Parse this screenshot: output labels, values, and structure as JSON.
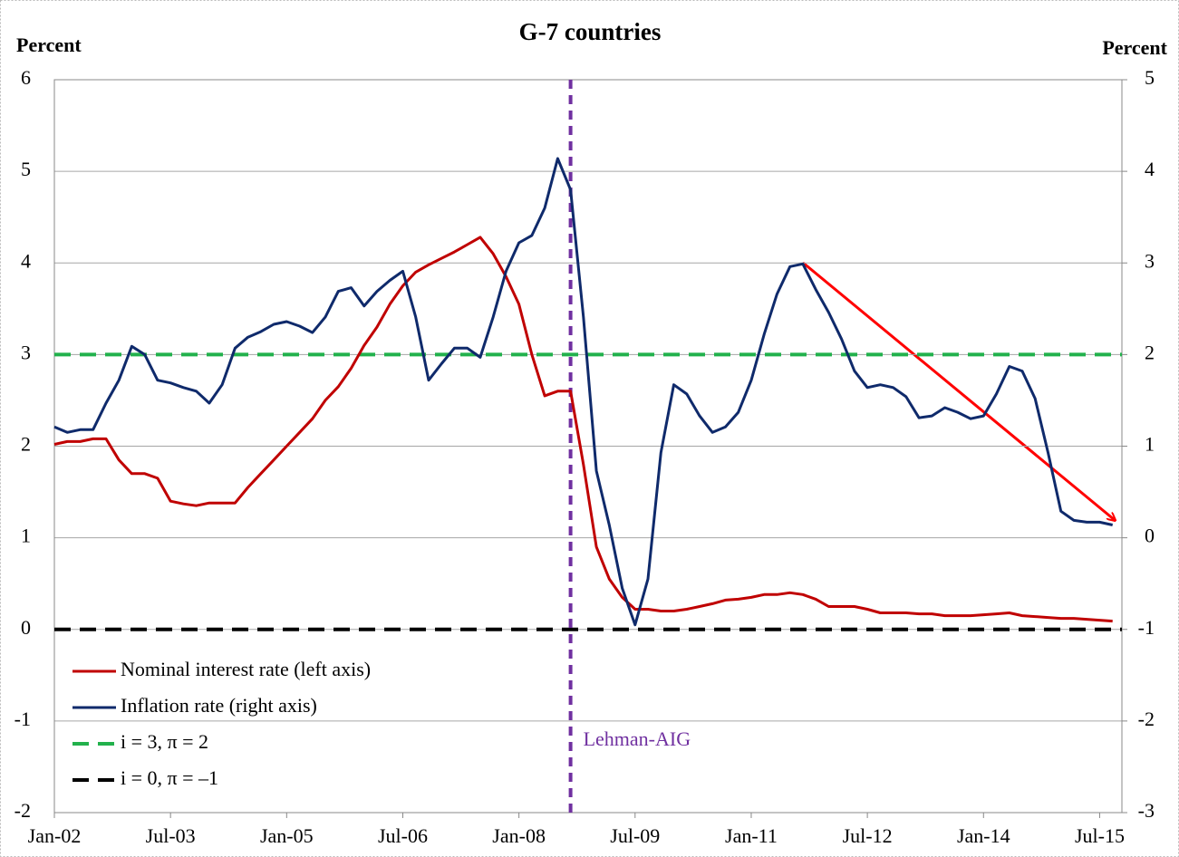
{
  "chart_data": {
    "type": "line",
    "title": "G-7 countries",
    "ylabel": "Percent",
    "y2label": "Percent",
    "categories": [
      "Jan-02",
      null,
      null,
      null,
      null,
      null,
      null,
      null,
      null,
      "Jul-03",
      null,
      null,
      null,
      null,
      null,
      null,
      null,
      null,
      "Jan-05",
      null,
      null,
      null,
      null,
      null,
      null,
      null,
      null,
      "Jul-06",
      null,
      null,
      null,
      null,
      null,
      null,
      null,
      null,
      "Jan-08",
      null,
      null,
      null,
      null,
      null,
      null,
      null,
      null,
      "Jul-09",
      null,
      null,
      null,
      null,
      null,
      null,
      null,
      null,
      "Jan-11",
      null,
      null,
      null,
      null,
      null,
      null,
      null,
      null,
      "Jul-12",
      null,
      null,
      null,
      null,
      null,
      null,
      null,
      null,
      "Jan-14",
      null,
      null,
      null,
      null,
      null,
      null,
      null,
      null,
      "Jul-15",
      null
    ],
    "series": [
      {
        "name": "Nominal interest rate (left axis)",
        "color": "#c00000",
        "values": [
          2.02,
          2.05,
          2.05,
          2.08,
          2.08,
          1.85,
          1.7,
          1.7,
          1.65,
          1.4,
          1.37,
          1.35,
          1.38,
          1.38,
          1.38,
          1.55,
          1.7,
          1.85,
          2.0,
          2.15,
          2.3,
          2.5,
          2.65,
          2.85,
          3.1,
          3.3,
          3.55,
          3.75,
          3.9,
          3.98,
          4.05,
          4.12,
          4.2,
          4.28,
          4.1,
          3.85,
          3.55,
          3.0,
          2.55,
          2.6,
          2.6,
          1.8,
          0.9,
          0.55,
          0.35,
          0.22,
          0.22,
          0.2,
          0.2,
          0.22,
          0.25,
          0.28,
          0.32,
          0.33,
          0.35,
          0.38,
          0.38,
          0.4,
          0.38,
          0.33,
          0.25,
          0.25,
          0.25,
          0.22,
          0.18,
          0.18,
          0.18,
          0.17,
          0.17,
          0.15,
          0.15,
          0.15,
          0.16,
          0.17,
          0.18,
          0.15,
          0.14,
          0.13,
          0.12,
          0.12,
          0.11,
          0.1,
          0.09
        ]
      },
      {
        "name": "Inflation rate (right axis)",
        "color": "#0f2a6b",
        "axis": "y2",
        "values": [
          1.21,
          1.15,
          1.18,
          1.18,
          1.47,
          1.72,
          2.09,
          2.0,
          1.72,
          1.69,
          1.64,
          1.6,
          1.47,
          1.67,
          2.07,
          2.19,
          2.25,
          2.33,
          2.36,
          2.31,
          2.24,
          2.41,
          2.69,
          2.73,
          2.53,
          2.69,
          2.81,
          2.91,
          2.41,
          1.72,
          1.9,
          2.07,
          2.07,
          1.97,
          2.41,
          2.91,
          3.22,
          3.3,
          3.6,
          4.14,
          3.8,
          2.41,
          0.73,
          0.14,
          -0.55,
          -0.95,
          -0.45,
          0.93,
          1.67,
          1.57,
          1.33,
          1.15,
          1.21,
          1.37,
          1.72,
          2.22,
          2.66,
          2.96,
          2.99,
          2.71,
          2.46,
          2.17,
          1.82,
          1.64,
          1.67,
          1.64,
          1.54,
          1.31,
          1.33,
          1.42,
          1.37,
          1.3,
          1.33,
          1.57,
          1.87,
          1.82,
          1.52,
          0.93,
          0.29,
          0.19,
          0.17,
          0.17,
          0.14
        ]
      }
    ],
    "hlines": [
      {
        "name": "i = 3,  π = 2",
        "value": 3,
        "color": "#22b14c"
      },
      {
        "name": "i = 0,  π = –1",
        "value": 0,
        "color": "#000000"
      }
    ],
    "vline": {
      "label": "Lehman-AIG",
      "x_index": 40,
      "color": "#7030a0"
    },
    "ylim": [
      -2,
      6
    ],
    "yticks": [
      -2,
      -1,
      0,
      1,
      2,
      3,
      4,
      5,
      6
    ],
    "y2lim": [
      -3,
      5
    ],
    "y2ticks": [
      -3,
      -2,
      -1,
      0,
      1,
      2,
      3,
      4,
      5
    ],
    "grid": true,
    "legend": "lower left"
  }
}
